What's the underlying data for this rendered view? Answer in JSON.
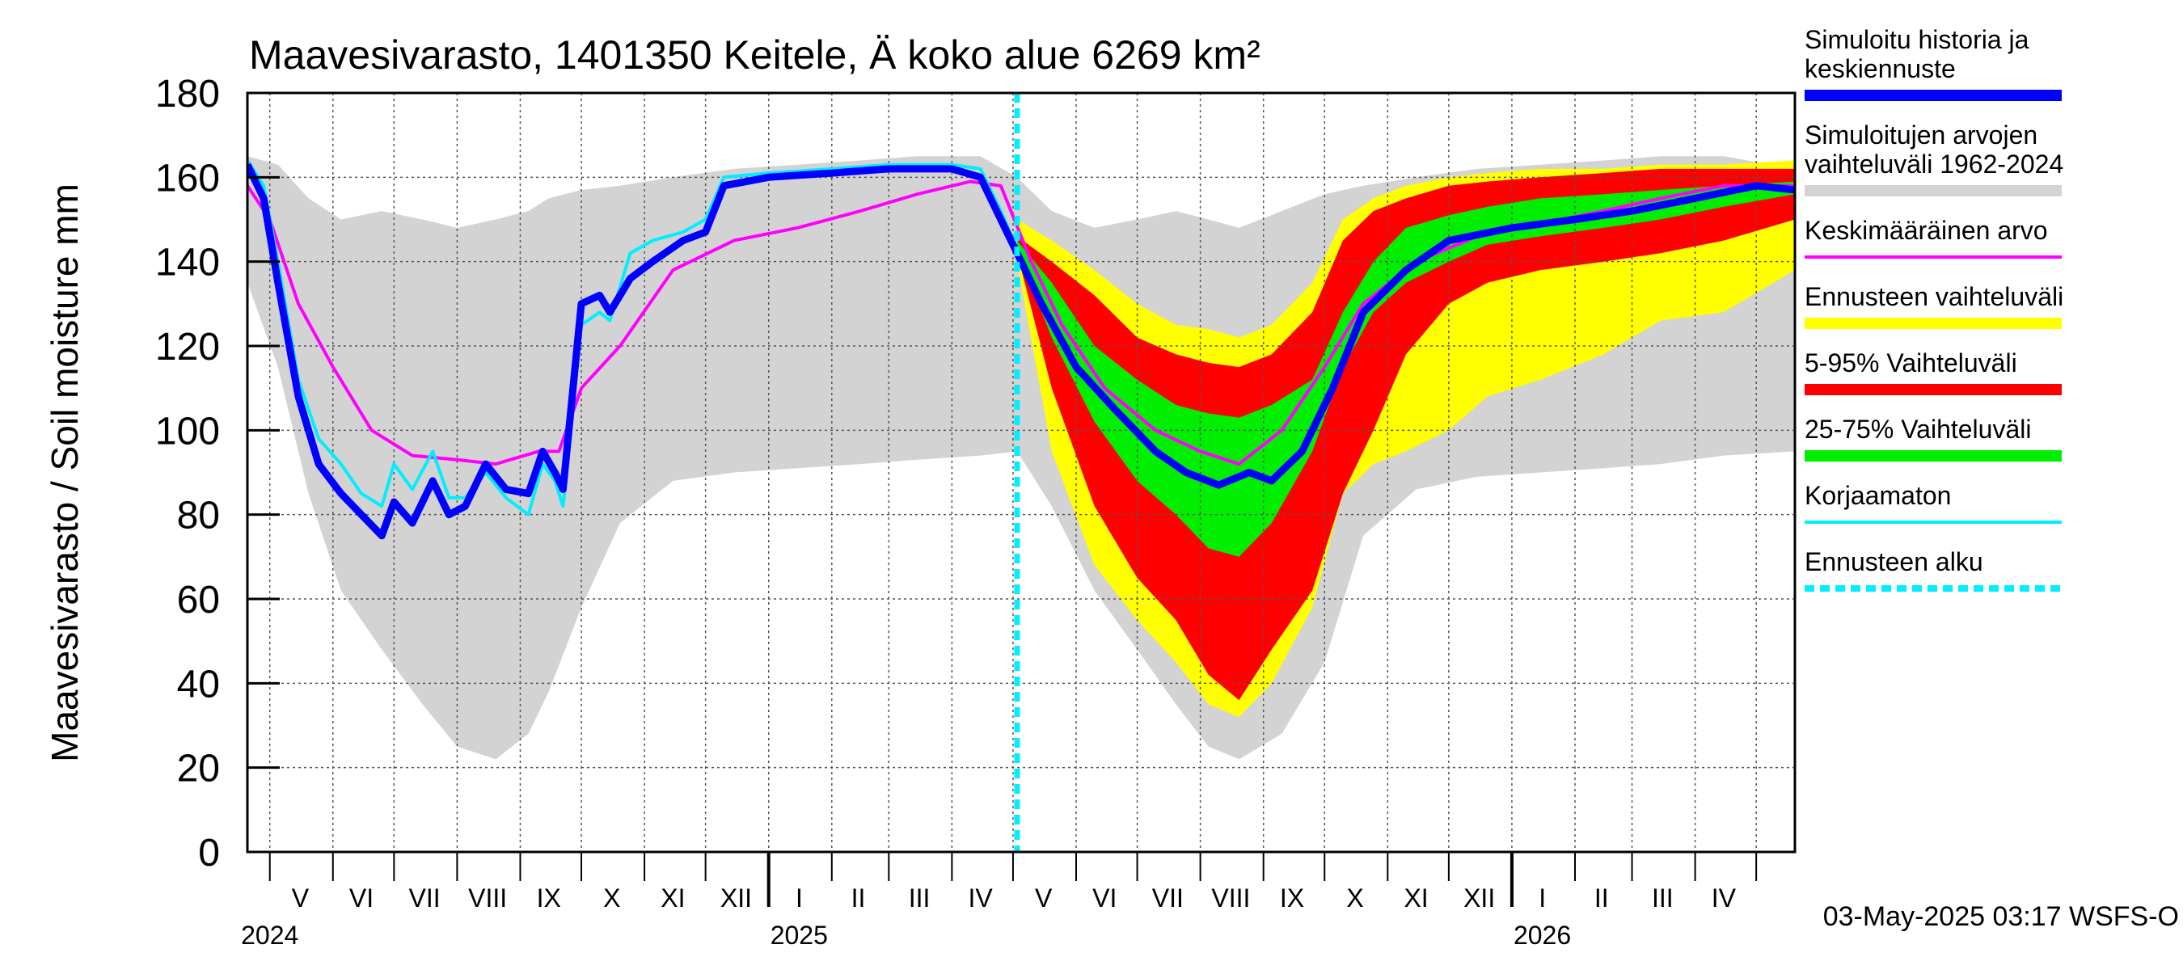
{
  "chart_data": {
    "type": "area",
    "title": "Maavesivarasto, 1401350 Keitele, Ä koko alue 6269 km²",
    "ylabel": "Maavesivarasto / Soil moisture   mm",
    "ylim": [
      0,
      180
    ],
    "yticks": [
      0,
      20,
      40,
      60,
      80,
      100,
      120,
      140,
      160,
      180
    ],
    "x_range": [
      "2024-04-20",
      "2026-05-20"
    ],
    "grid": true,
    "legend_position": "right",
    "forecast_start": "2025-05-03",
    "timestamp": "03-May-2025 03:17 WSFS-O",
    "month_labels": [
      {
        "label": "V",
        "date": "2024-05-16"
      },
      {
        "label": "VI",
        "date": "2024-06-15"
      },
      {
        "label": "VII",
        "date": "2024-07-16"
      },
      {
        "label": "VIII",
        "date": "2024-08-16"
      },
      {
        "label": "IX",
        "date": "2024-09-15"
      },
      {
        "label": "X",
        "date": "2024-10-16"
      },
      {
        "label": "XI",
        "date": "2024-11-15"
      },
      {
        "label": "XII",
        "date": "2024-12-16"
      },
      {
        "label": "I",
        "date": "2025-01-16"
      },
      {
        "label": "II",
        "date": "2025-02-14"
      },
      {
        "label": "III",
        "date": "2025-03-16"
      },
      {
        "label": "IV",
        "date": "2025-04-15"
      },
      {
        "label": "V",
        "date": "2025-05-16"
      },
      {
        "label": "VI",
        "date": "2025-06-15"
      },
      {
        "label": "VII",
        "date": "2025-07-16"
      },
      {
        "label": "VIII",
        "date": "2025-08-16"
      },
      {
        "label": "IX",
        "date": "2025-09-15"
      },
      {
        "label": "X",
        "date": "2025-10-16"
      },
      {
        "label": "XI",
        "date": "2025-11-15"
      },
      {
        "label": "XII",
        "date": "2025-12-16"
      },
      {
        "label": "I",
        "date": "2026-01-16"
      },
      {
        "label": "II",
        "date": "2026-02-14"
      },
      {
        "label": "III",
        "date": "2026-03-16"
      },
      {
        "label": "IV",
        "date": "2026-04-15"
      }
    ],
    "year_labels": [
      {
        "label": "2024",
        "date": "2024-05-01"
      },
      {
        "label": "2025",
        "date": "2025-01-01"
      },
      {
        "label": "2026",
        "date": "2026-01-01"
      }
    ],
    "legend": [
      {
        "label": "Simuloitu historia ja keskiennuste",
        "lines": [
          "Simuloitu historia ja",
          "keskiennuste"
        ],
        "color": "#0000ff",
        "style": "thick"
      },
      {
        "label": "Simuloitujen arvojen vaihteluväli 1962-2024",
        "lines": [
          "Simuloitujen arvojen",
          "vaihteluväli 1962-2024"
        ],
        "color": "#d3d3d3",
        "style": "thick"
      },
      {
        "label": "Keskimääräinen arvo",
        "lines": [
          "Keskimääräinen arvo"
        ],
        "color": "#ff00ff",
        "style": "thin"
      },
      {
        "label": "Ennusteen vaihteluväli",
        "lines": [
          "Ennusteen vaihteluväli"
        ],
        "color": "#ffff00",
        "style": "thick"
      },
      {
        "label": "5-95% Vaihteluväli",
        "lines": [
          "5-95% Vaihteluväli"
        ],
        "color": "#ff0000",
        "style": "thick"
      },
      {
        "label": "25-75% Vaihteluväli",
        "lines": [
          "25-75% Vaihteluväli"
        ],
        "color": "#00ee00",
        "style": "thick"
      },
      {
        "label": "Korjaamaton",
        "lines": [
          "Korjaamaton"
        ],
        "color": "#00eeff",
        "style": "thin"
      },
      {
        "label": "Ennusteen alku",
        "lines": [
          "Ennusteen alku"
        ],
        "color": "#00eeff",
        "style": "dashed"
      }
    ],
    "bands": {
      "history_range": {
        "color": "#d3d3d3",
        "x": [
          "2024-04-20",
          "2024-05-05",
          "2024-05-20",
          "2024-06-05",
          "2024-06-25",
          "2024-07-15",
          "2024-08-01",
          "2024-08-20",
          "2024-09-05",
          "2024-09-15",
          "2024-10-01",
          "2024-10-20",
          "2024-11-15",
          "2024-12-15",
          "2025-01-15",
          "2025-02-15",
          "2025-03-15",
          "2025-04-15",
          "2025-05-03",
          "2025-05-20",
          "2025-06-10",
          "2025-07-01",
          "2025-07-20",
          "2025-08-05",
          "2025-08-20",
          "2025-09-10",
          "2025-10-01",
          "2025-10-20",
          "2025-11-15",
          "2025-12-15",
          "2026-01-15",
          "2026-02-15",
          "2026-03-15",
          "2026-04-15",
          "2026-05-20"
        ],
        "low": [
          135,
          115,
          85,
          62,
          48,
          35,
          25,
          22,
          28,
          38,
          58,
          78,
          88,
          90,
          91,
          92,
          93,
          94,
          95,
          82,
          62,
          48,
          35,
          25,
          22,
          28,
          45,
          75,
          86,
          89,
          90,
          91,
          92,
          94,
          95
        ],
        "high": [
          165,
          163,
          155,
          150,
          152,
          150,
          148,
          150,
          152,
          155,
          157,
          158,
          160,
          162,
          163,
          164,
          165,
          165,
          160,
          152,
          148,
          150,
          152,
          150,
          148,
          152,
          156,
          158,
          160,
          162,
          163,
          164,
          165,
          165,
          162
        ]
      },
      "forecast_range": {
        "color": "#ffff00",
        "x": [
          "2025-05-03",
          "2025-05-20",
          "2025-06-10",
          "2025-07-01",
          "2025-07-20",
          "2025-08-05",
          "2025-08-20",
          "2025-09-05",
          "2025-09-25",
          "2025-10-10",
          "2025-10-25",
          "2025-11-10",
          "2025-12-01",
          "2025-12-20",
          "2026-01-15",
          "2026-02-15",
          "2026-03-15",
          "2026-04-15",
          "2026-05-20"
        ],
        "low": [
          140,
          95,
          68,
          55,
          45,
          35,
          32,
          40,
          58,
          85,
          92,
          95,
          100,
          108,
          112,
          118,
          126,
          128,
          138
        ],
        "high": [
          150,
          145,
          138,
          130,
          125,
          124,
          122,
          125,
          135,
          150,
          155,
          158,
          160,
          161,
          162,
          162,
          163,
          163,
          164
        ]
      },
      "p5_95": {
        "color": "#ff0000",
        "x": [
          "2025-05-03",
          "2025-05-20",
          "2025-06-10",
          "2025-07-01",
          "2025-07-20",
          "2025-08-05",
          "2025-08-20",
          "2025-09-05",
          "2025-09-25",
          "2025-10-10",
          "2025-10-25",
          "2025-11-10",
          "2025-12-01",
          "2025-12-20",
          "2026-01-15",
          "2026-02-15",
          "2026-03-15",
          "2026-04-15",
          "2026-05-20"
        ],
        "low": [
          142,
          110,
          82,
          65,
          55,
          42,
          36,
          48,
          62,
          85,
          100,
          118,
          130,
          135,
          138,
          140,
          142,
          145,
          150
        ],
        "high": [
          146,
          140,
          132,
          122,
          118,
          116,
          115,
          118,
          128,
          145,
          152,
          155,
          158,
          159,
          160,
          161,
          162,
          162,
          162
        ]
      },
      "p25_75": {
        "color": "#00ee00",
        "x": [
          "2025-05-03",
          "2025-05-20",
          "2025-06-10",
          "2025-07-01",
          "2025-07-20",
          "2025-08-05",
          "2025-08-20",
          "2025-09-05",
          "2025-09-25",
          "2025-10-10",
          "2025-10-25",
          "2025-11-10",
          "2025-12-01",
          "2025-12-20",
          "2026-01-15",
          "2026-02-15",
          "2026-03-15",
          "2026-04-15",
          "2026-05-20"
        ],
        "low": [
          143,
          122,
          102,
          88,
          80,
          72,
          70,
          78,
          95,
          115,
          128,
          135,
          140,
          144,
          146,
          148,
          150,
          153,
          156
        ],
        "high": [
          145,
          135,
          120,
          112,
          106,
          104,
          103,
          106,
          112,
          128,
          140,
          148,
          151,
          153,
          155,
          156,
          157,
          158,
          159
        ]
      }
    },
    "series": [
      {
        "name": "Simuloitu historia ja keskiennuste",
        "color": "#0000ff",
        "width": "thick",
        "x": [
          "2024-04-20",
          "2024-04-28",
          "2024-05-05",
          "2024-05-15",
          "2024-05-25",
          "2024-06-05",
          "2024-06-15",
          "2024-06-25",
          "2024-07-01",
          "2024-07-10",
          "2024-07-20",
          "2024-07-28",
          "2024-08-05",
          "2024-08-15",
          "2024-08-25",
          "2024-09-05",
          "2024-09-12",
          "2024-09-18",
          "2024-09-22",
          "2024-10-01",
          "2024-10-10",
          "2024-10-15",
          "2024-10-25",
          "2024-11-05",
          "2024-11-20",
          "2024-12-01",
          "2024-12-10",
          "2025-01-01",
          "2025-02-01",
          "2025-03-01",
          "2025-04-01",
          "2025-04-15",
          "2025-04-25",
          "2025-05-03",
          "2025-05-15",
          "2025-06-01",
          "2025-06-20",
          "2025-07-10",
          "2025-07-25",
          "2025-08-10",
          "2025-08-25",
          "2025-09-05",
          "2025-09-20",
          "2025-10-05",
          "2025-10-20",
          "2025-11-10",
          "2025-12-01",
          "2026-01-01",
          "2026-02-01",
          "2026-03-01",
          "2026-04-01",
          "2026-05-01",
          "2026-05-20"
        ],
        "y": [
          163,
          155,
          135,
          108,
          92,
          85,
          80,
          75,
          83,
          78,
          88,
          80,
          82,
          92,
          86,
          85,
          95,
          90,
          86,
          130,
          132,
          128,
          136,
          140,
          145,
          147,
          158,
          160,
          161,
          162,
          162,
          160,
          150,
          142,
          130,
          115,
          105,
          95,
          90,
          87,
          90,
          88,
          95,
          110,
          128,
          138,
          145,
          148,
          150,
          152,
          155,
          158,
          157
        ]
      },
      {
        "name": "Keskimääräinen arvo",
        "color": "#ff00ff",
        "width": "thin",
        "x": [
          "2024-04-20",
          "2024-05-01",
          "2024-05-15",
          "2024-06-01",
          "2024-06-20",
          "2024-07-10",
          "2024-08-01",
          "2024-08-20",
          "2024-09-10",
          "2024-09-20",
          "2024-10-01",
          "2024-10-20",
          "2024-11-15",
          "2024-12-15",
          "2025-01-15",
          "2025-02-15",
          "2025-03-15",
          "2025-04-10",
          "2025-04-25",
          "2025-05-10",
          "2025-05-25",
          "2025-06-15",
          "2025-07-10",
          "2025-08-01",
          "2025-08-20",
          "2025-09-10",
          "2025-10-01",
          "2025-10-20",
          "2025-11-15",
          "2025-12-15",
          "2026-01-15",
          "2026-02-15",
          "2026-03-15",
          "2026-04-15",
          "2026-05-20"
        ],
        "y": [
          158,
          150,
          130,
          115,
          100,
          94,
          93,
          92,
          95,
          95,
          110,
          120,
          138,
          145,
          148,
          152,
          156,
          159,
          158,
          140,
          125,
          110,
          100,
          95,
          92,
          100,
          115,
          130,
          140,
          146,
          149,
          152,
          155,
          158,
          158
        ]
      },
      {
        "name": "Korjaamaton",
        "color": "#00eeff",
        "width": "thin",
        "x": [
          "2024-04-20",
          "2024-04-28",
          "2024-05-05",
          "2024-05-15",
          "2024-05-25",
          "2024-06-05",
          "2024-06-15",
          "2024-06-25",
          "2024-07-01",
          "2024-07-10",
          "2024-07-20",
          "2024-07-28",
          "2024-08-05",
          "2024-08-15",
          "2024-08-25",
          "2024-09-05",
          "2024-09-12",
          "2024-09-18",
          "2024-09-22",
          "2024-10-01",
          "2024-10-10",
          "2024-10-15",
          "2024-10-25",
          "2024-11-05",
          "2024-11-20",
          "2024-12-01",
          "2024-12-10",
          "2025-01-01",
          "2025-02-01",
          "2025-03-01",
          "2025-04-01",
          "2025-04-15",
          "2025-04-25",
          "2025-05-03"
        ],
        "y": [
          164,
          158,
          140,
          112,
          98,
          92,
          85,
          82,
          92,
          86,
          95,
          84,
          84,
          90,
          84,
          80,
          92,
          88,
          82,
          125,
          128,
          126,
          142,
          145,
          147,
          150,
          160,
          161,
          162,
          163,
          163,
          162,
          152,
          143
        ]
      }
    ]
  }
}
